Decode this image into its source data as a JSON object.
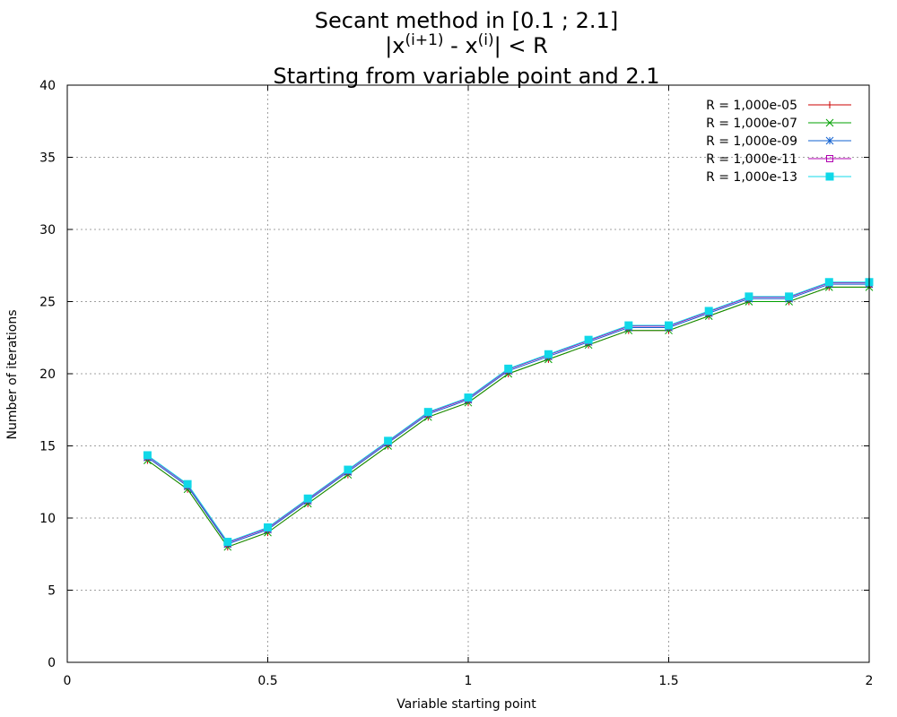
{
  "chart_data": {
    "type": "line",
    "title": {
      "line1": "Secant method in [0.1 ; 2.1]",
      "line2_prefix": "|x",
      "line2_sup1": "(i+1)",
      "line2_mid": " - x",
      "line2_sup2": "(i)",
      "line2_suffix": "| < R",
      "line3": "Starting from variable point and 2.1"
    },
    "xlabel": "Variable starting point",
    "ylabel": "Number of iterations",
    "xlim": [
      0,
      2
    ],
    "ylim": [
      0,
      40
    ],
    "xticks": [
      "0",
      "0.5",
      "1",
      "1.5",
      "2"
    ],
    "yticks": [
      "0",
      "5",
      "10",
      "15",
      "20",
      "25",
      "30",
      "35",
      "40"
    ],
    "grid": true,
    "legend_position": "top-right",
    "x": [
      0.2,
      0.3,
      0.4,
      0.5,
      0.6,
      0.7,
      0.8,
      0.9,
      1.0,
      1.1,
      1.2,
      1.3,
      1.4,
      1.5,
      1.6,
      1.7,
      1.8,
      1.9,
      2.0
    ],
    "series": [
      {
        "name": "R = 1,000e-05",
        "color": "#cc0000",
        "marker": "plus",
        "values": [
          14,
          12,
          8,
          9,
          11,
          13,
          15,
          17,
          18,
          20,
          21,
          22,
          23,
          23,
          24,
          25,
          25,
          26,
          26
        ]
      },
      {
        "name": "R = 1,000e-07",
        "color": "#00a000",
        "marker": "cross",
        "values": [
          14,
          12,
          8,
          9,
          11,
          13,
          15,
          17,
          18,
          20,
          21,
          22,
          23,
          23,
          24,
          25,
          25,
          26,
          26
        ]
      },
      {
        "name": "R = 1,000e-09",
        "color": "#1060d0",
        "marker": "star",
        "values": [
          14.2,
          12.2,
          8.2,
          9.2,
          11.2,
          13.2,
          15.2,
          17.2,
          18.2,
          20.2,
          21.2,
          22.2,
          23.2,
          23.2,
          24.2,
          25.2,
          25.2,
          26.2,
          26.2
        ]
      },
      {
        "name": "R = 1,000e-11",
        "color": "#b000b0",
        "marker": "box",
        "values": [
          14.3,
          12.3,
          8.3,
          9.3,
          11.3,
          13.3,
          15.3,
          17.3,
          18.3,
          20.3,
          21.3,
          22.3,
          23.3,
          23.3,
          24.3,
          25.3,
          25.3,
          26.3,
          26.3
        ]
      },
      {
        "name": "R = 1,000e-13",
        "color": "#10d8e8",
        "marker": "filled-box",
        "values": [
          14.35,
          12.35,
          8.35,
          9.35,
          11.35,
          13.35,
          15.35,
          17.35,
          18.35,
          20.35,
          21.35,
          22.35,
          23.35,
          23.35,
          24.35,
          25.35,
          25.35,
          26.35,
          26.35
        ]
      }
    ]
  }
}
